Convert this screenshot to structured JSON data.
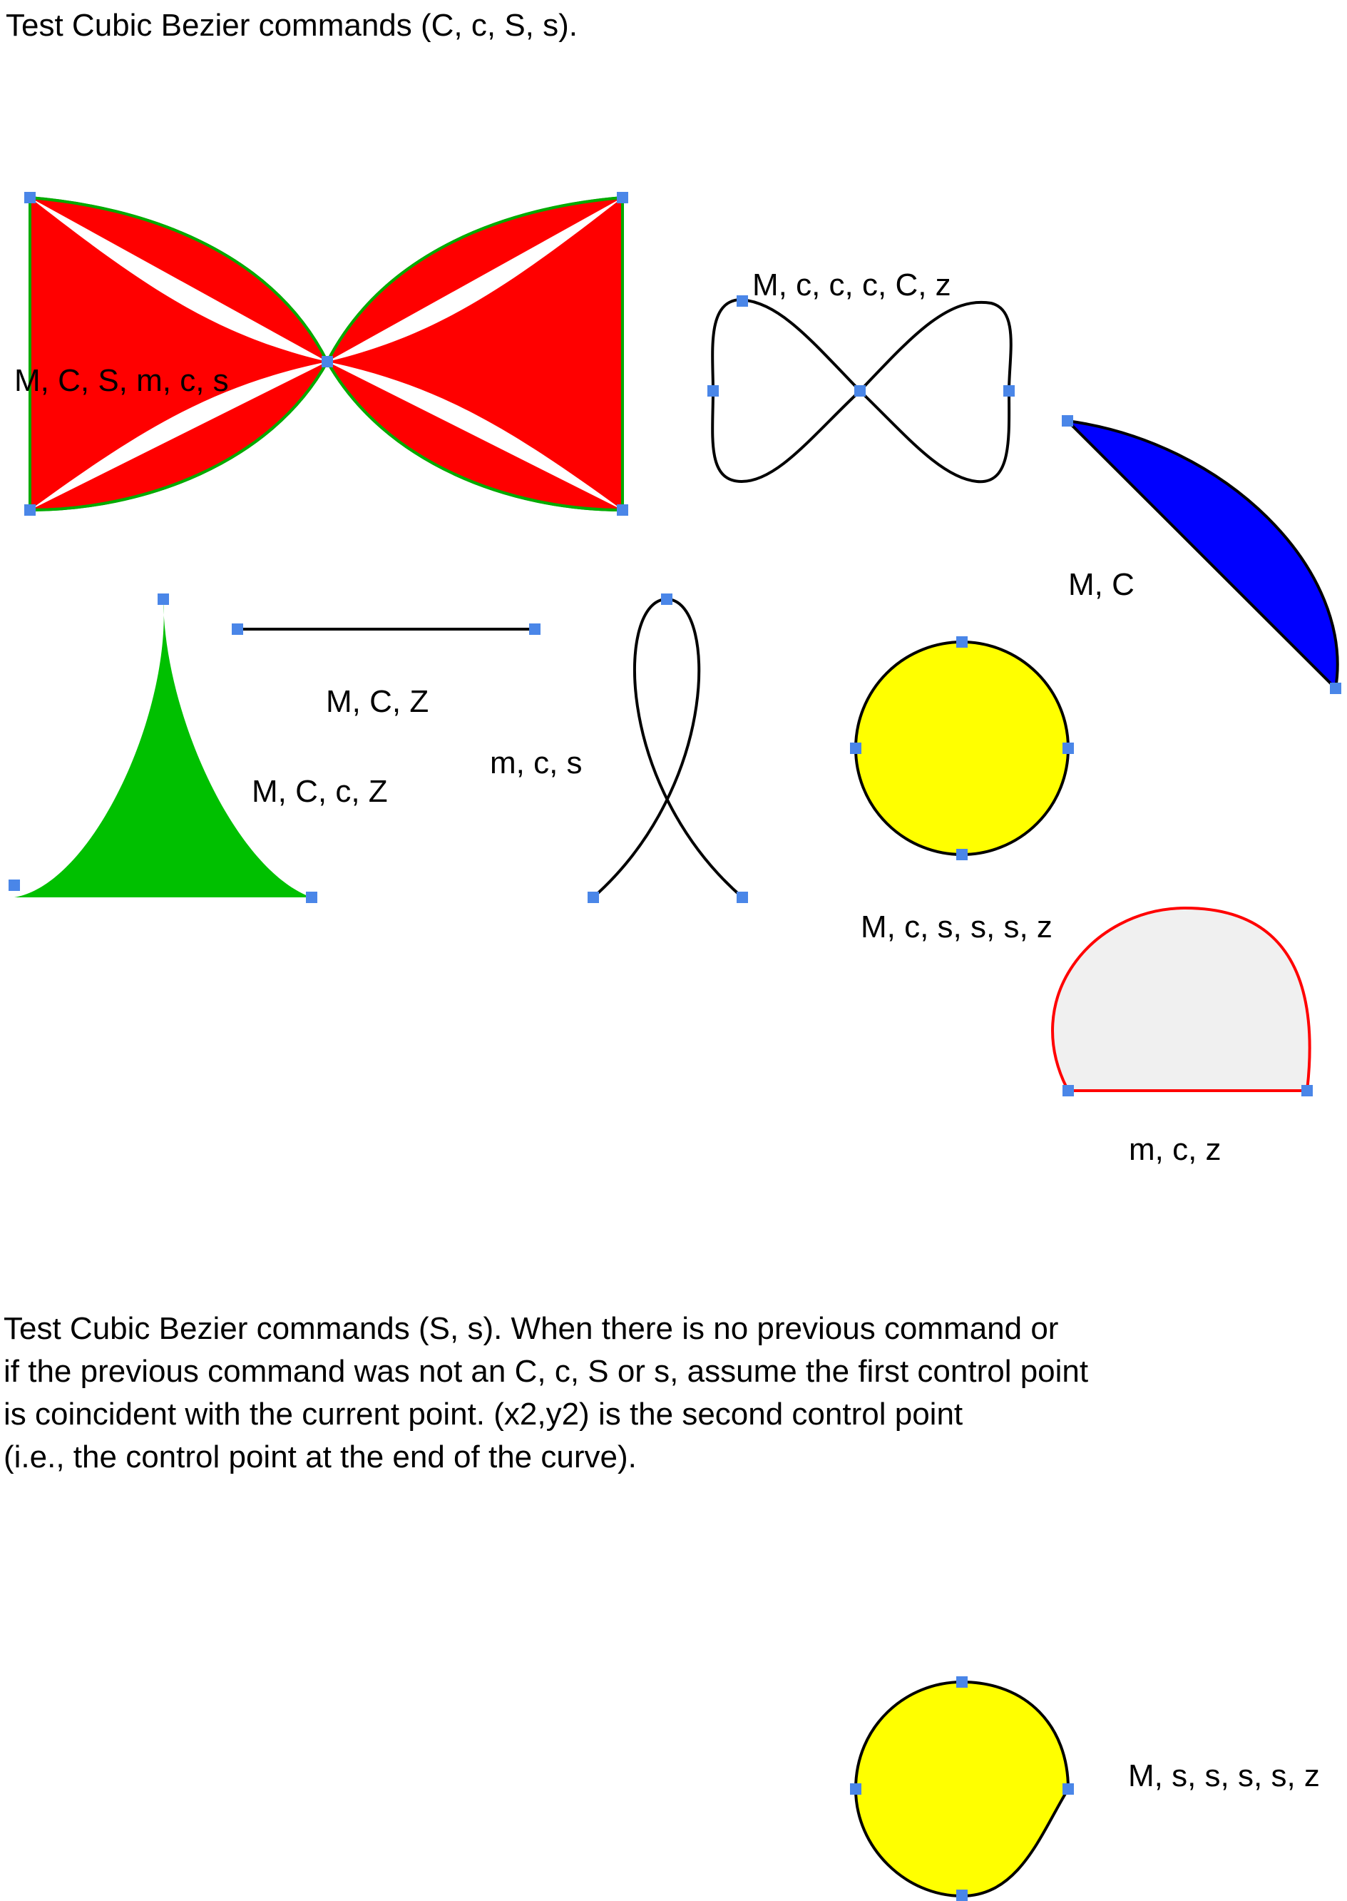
{
  "header": {
    "title": "Test Cubic Bezier commands (C, c, S, s)."
  },
  "labels": {
    "bowtie": "M, C, S, m, c, s",
    "infinity": "M, c, c, c, C, z",
    "blue_wedge": "M, C",
    "line": "M, C, Z",
    "green": "M, C, c, Z",
    "loop": "m, c, s",
    "circle": "M, c, s, s, s, z",
    "dome": "m, c, z",
    "smooth_circle": "M, s, s, s, s, z"
  },
  "note": {
    "lines": [
      "Test Cubic Bezier commands (S, s). When there is no previous command or",
      "if the previous command was not an C, c, S or s, assume the first control point",
      "is coincident with the current point. (x2,y2) is the second control point",
      "(i.e., the control point at the end of the curve)."
    ]
  },
  "colors": {
    "red_fill": "#ff0000",
    "green_stroke": "#00aa00",
    "blue_fill": "#0000ff",
    "green_fill": "#00c000",
    "yellow_fill": "#ffff00",
    "grey_fill": "#f0f0f0",
    "red_stroke": "#ff0000",
    "handle": "#4a86e8",
    "stroke": "#000000"
  }
}
